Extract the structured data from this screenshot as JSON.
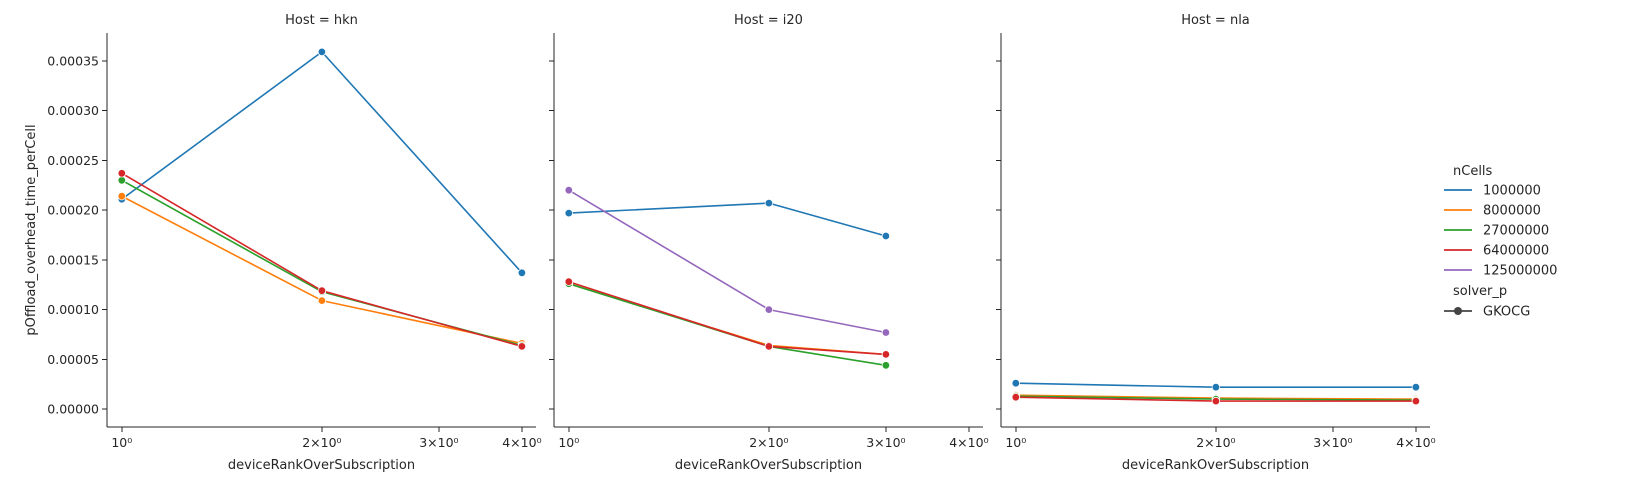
{
  "chart_data": {
    "type": "line",
    "ylabel": "pOffload_overhead_time_perCell",
    "xlabel": "deviceRankOverSubscription",
    "x_scale": "log",
    "xlim": [
      0.95,
      4.2
    ],
    "ylim": [
      -1.8e-05,
      0.000378
    ],
    "x_ticks": [
      {
        "value": 1,
        "label": "10⁰"
      },
      {
        "value": 2,
        "label": "2×10⁰"
      },
      {
        "value": 3,
        "label": "3×10⁰"
      },
      {
        "value": 4,
        "label": "4×10⁰"
      }
    ],
    "y_ticks": [
      {
        "value": 0,
        "label": "0.00000"
      },
      {
        "value": 5e-05,
        "label": "0.00005"
      },
      {
        "value": 0.0001,
        "label": "0.00010"
      },
      {
        "value": 0.00015,
        "label": "0.00015"
      },
      {
        "value": 0.0002,
        "label": "0.00020"
      },
      {
        "value": 0.00025,
        "label": "0.00025"
      },
      {
        "value": 0.0003,
        "label": "0.00030"
      },
      {
        "value": 0.00035,
        "label": "0.00035"
      }
    ],
    "legend": {
      "position": "right",
      "hue_title": "nCells",
      "hue_entries": [
        {
          "label": "1000000",
          "color": "#1f77b4"
        },
        {
          "label": "8000000",
          "color": "#ff7f0e"
        },
        {
          "label": "27000000",
          "color": "#2ca02c"
        },
        {
          "label": "64000000",
          "color": "#d62728"
        },
        {
          "label": "125000000",
          "color": "#9467bd"
        }
      ],
      "style_title": "solver_p",
      "style_entries": [
        {
          "label": "GKOCG",
          "color": "#444444"
        }
      ]
    },
    "panels": [
      {
        "title": "Host = hkn",
        "series": [
          {
            "name": "1000000",
            "color": "#1f77b4",
            "points": [
              [
                1,
                0.000211
              ],
              [
                2,
                0.000359
              ],
              [
                4,
                0.000137
              ]
            ]
          },
          {
            "name": "8000000",
            "color": "#ff7f0e",
            "points": [
              [
                1,
                0.000214
              ],
              [
                2,
                0.000109
              ],
              [
                4,
                6.6e-05
              ]
            ]
          },
          {
            "name": "27000000",
            "color": "#2ca02c",
            "points": [
              [
                1,
                0.00023
              ],
              [
                2,
                0.000118
              ],
              [
                4,
                6.4e-05
              ]
            ]
          },
          {
            "name": "64000000",
            "color": "#d62728",
            "points": [
              [
                1,
                0.000237
              ],
              [
                2,
                0.000119
              ],
              [
                4,
                6.3e-05
              ]
            ]
          }
        ]
      },
      {
        "title": "Host = i20",
        "series": [
          {
            "name": "1000000",
            "color": "#1f77b4",
            "points": [
              [
                1,
                0.000197
              ],
              [
                2,
                0.000207
              ],
              [
                3,
                0.000174
              ]
            ]
          },
          {
            "name": "125000000",
            "color": "#9467bd",
            "points": [
              [
                1,
                0.00022
              ],
              [
                2,
                0.0001
              ],
              [
                3,
                7.7e-05
              ]
            ]
          },
          {
            "name": "8000000",
            "color": "#ff7f0e",
            "points": [
              [
                1,
                0.000126
              ],
              [
                2,
                6.4e-05
              ],
              [
                3,
                5.5e-05
              ]
            ]
          },
          {
            "name": "27000000",
            "color": "#2ca02c",
            "points": [
              [
                1,
                0.000126
              ],
              [
                2,
                6.3e-05
              ],
              [
                3,
                4.4e-05
              ]
            ]
          },
          {
            "name": "64000000",
            "color": "#d62728",
            "points": [
              [
                1,
                0.000128
              ],
              [
                2,
                6.3e-05
              ],
              [
                3,
                5.5e-05
              ]
            ]
          }
        ]
      },
      {
        "title": "Host = nla",
        "series": [
          {
            "name": "1000000",
            "color": "#1f77b4",
            "points": [
              [
                1,
                2.6e-05
              ],
              [
                2,
                2.2e-05
              ],
              [
                4,
                2.2e-05
              ]
            ]
          },
          {
            "name": "8000000",
            "color": "#ff7f0e",
            "points": [
              [
                1,
                1.4e-05
              ],
              [
                2,
                1.1e-05
              ],
              [
                4,
                1e-05
              ]
            ]
          },
          {
            "name": "27000000",
            "color": "#2ca02c",
            "points": [
              [
                1,
                1.3e-05
              ],
              [
                2,
                1e-05
              ],
              [
                4,
                9e-06
              ]
            ]
          },
          {
            "name": "64000000",
            "color": "#d62728",
            "points": [
              [
                1,
                1.2e-05
              ],
              [
                2,
                8e-06
              ],
              [
                4,
                8e-06
              ]
            ]
          }
        ]
      }
    ]
  }
}
